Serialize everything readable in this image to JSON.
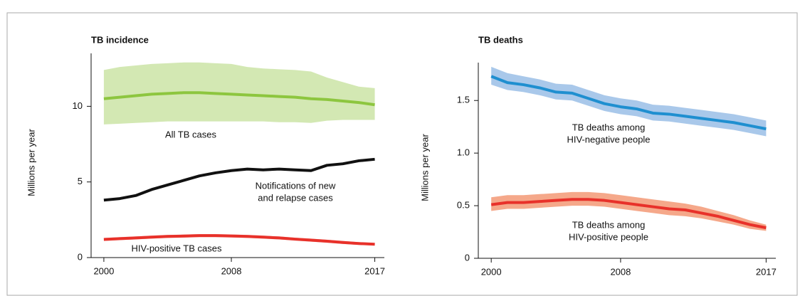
{
  "chart_data": [
    {
      "type": "line",
      "title": "TB incidence",
      "ylabel": "Millions per year",
      "x": [
        2000,
        2001,
        2002,
        2003,
        2004,
        2005,
        2006,
        2007,
        2008,
        2009,
        2010,
        2011,
        2012,
        2013,
        2014,
        2015,
        2016,
        2017
      ],
      "xlim": [
        1999.2,
        2017.6
      ],
      "ylim": [
        0,
        13.5
      ],
      "xticks": [
        2000,
        2008,
        2017
      ],
      "yticks": [
        0,
        5,
        10
      ],
      "series": [
        {
          "label": [
            "All TB cases"
          ],
          "color": "#8dc63f",
          "band_color": "#d3e8b3",
          "values": [
            10.5,
            10.6,
            10.7,
            10.8,
            10.85,
            10.9,
            10.9,
            10.85,
            10.8,
            10.75,
            10.7,
            10.65,
            10.6,
            10.5,
            10.45,
            10.35,
            10.25,
            10.1
          ],
          "lower": [
            8.8,
            8.85,
            8.9,
            8.95,
            9.0,
            9.0,
            9.0,
            9.0,
            9.0,
            9.0,
            9.0,
            8.95,
            8.95,
            8.9,
            9.05,
            9.1,
            9.1,
            9.1
          ],
          "upper": [
            12.4,
            12.6,
            12.7,
            12.8,
            12.85,
            12.9,
            12.9,
            12.85,
            12.8,
            12.6,
            12.5,
            12.45,
            12.4,
            12.3,
            11.9,
            11.6,
            11.3,
            11.2
          ]
        },
        {
          "label": [
            "Notifications of new",
            "and relapse cases"
          ],
          "color": "#111111",
          "values": [
            3.8,
            3.9,
            4.1,
            4.5,
            4.8,
            5.1,
            5.4,
            5.6,
            5.75,
            5.85,
            5.8,
            5.85,
            5.8,
            5.75,
            6.1,
            6.2,
            6.4,
            6.5
          ]
        },
        {
          "label": [
            "HIV-positive TB cases"
          ],
          "color": "#e8312a",
          "band_color": "#f4a9a3",
          "values": [
            1.2,
            1.25,
            1.3,
            1.35,
            1.4,
            1.42,
            1.45,
            1.45,
            1.43,
            1.4,
            1.35,
            1.3,
            1.22,
            1.15,
            1.08,
            1.0,
            0.93,
            0.88
          ],
          "lower": [
            1.1,
            1.15,
            1.2,
            1.25,
            1.3,
            1.32,
            1.35,
            1.35,
            1.33,
            1.3,
            1.25,
            1.2,
            1.12,
            1.05,
            0.98,
            0.9,
            0.84,
            0.8
          ],
          "upper": [
            1.3,
            1.35,
            1.4,
            1.45,
            1.5,
            1.52,
            1.55,
            1.55,
            1.53,
            1.5,
            1.45,
            1.4,
            1.32,
            1.25,
            1.18,
            1.1,
            1.02,
            0.96
          ]
        }
      ]
    },
    {
      "type": "line",
      "title": "TB deaths",
      "ylabel": "Millions per year",
      "x": [
        2000,
        2001,
        2002,
        2003,
        2004,
        2005,
        2006,
        2007,
        2008,
        2009,
        2010,
        2011,
        2012,
        2013,
        2014,
        2015,
        2016,
        2017
      ],
      "xlim": [
        1999.2,
        2017.6
      ],
      "ylim": [
        0,
        1.86
      ],
      "xticks": [
        2000,
        2008,
        2017
      ],
      "yticks": [
        0,
        0.5,
        {
          "value": 1,
          "label": "1.0"
        },
        1.5
      ],
      "series": [
        {
          "label": [
            "TB deaths among",
            "HIV-negative people"
          ],
          "color": "#1f8fd0",
          "band_color": "#a9c8ea",
          "values": [
            1.73,
            1.67,
            1.65,
            1.62,
            1.58,
            1.57,
            1.52,
            1.47,
            1.44,
            1.42,
            1.38,
            1.37,
            1.35,
            1.33,
            1.31,
            1.29,
            1.26,
            1.23
          ],
          "lower": [
            1.65,
            1.6,
            1.58,
            1.55,
            1.51,
            1.5,
            1.45,
            1.4,
            1.37,
            1.35,
            1.31,
            1.3,
            1.28,
            1.26,
            1.24,
            1.22,
            1.19,
            1.16
          ],
          "upper": [
            1.82,
            1.76,
            1.73,
            1.7,
            1.66,
            1.65,
            1.6,
            1.55,
            1.52,
            1.5,
            1.46,
            1.45,
            1.43,
            1.41,
            1.39,
            1.37,
            1.34,
            1.31
          ]
        },
        {
          "label": [
            "TB deaths among",
            "HIV-positive people"
          ],
          "color": "#e8312a",
          "band_color": "#f5a88a",
          "values": [
            0.51,
            0.53,
            0.53,
            0.54,
            0.55,
            0.56,
            0.56,
            0.55,
            0.53,
            0.51,
            0.49,
            0.47,
            0.46,
            0.43,
            0.4,
            0.36,
            0.32,
            0.29
          ],
          "lower": [
            0.45,
            0.47,
            0.47,
            0.48,
            0.49,
            0.5,
            0.5,
            0.49,
            0.47,
            0.45,
            0.43,
            0.41,
            0.4,
            0.38,
            0.35,
            0.32,
            0.28,
            0.26
          ],
          "upper": [
            0.58,
            0.6,
            0.6,
            0.61,
            0.62,
            0.63,
            0.63,
            0.62,
            0.6,
            0.58,
            0.56,
            0.54,
            0.52,
            0.49,
            0.45,
            0.41,
            0.36,
            0.32
          ]
        }
      ]
    }
  ]
}
